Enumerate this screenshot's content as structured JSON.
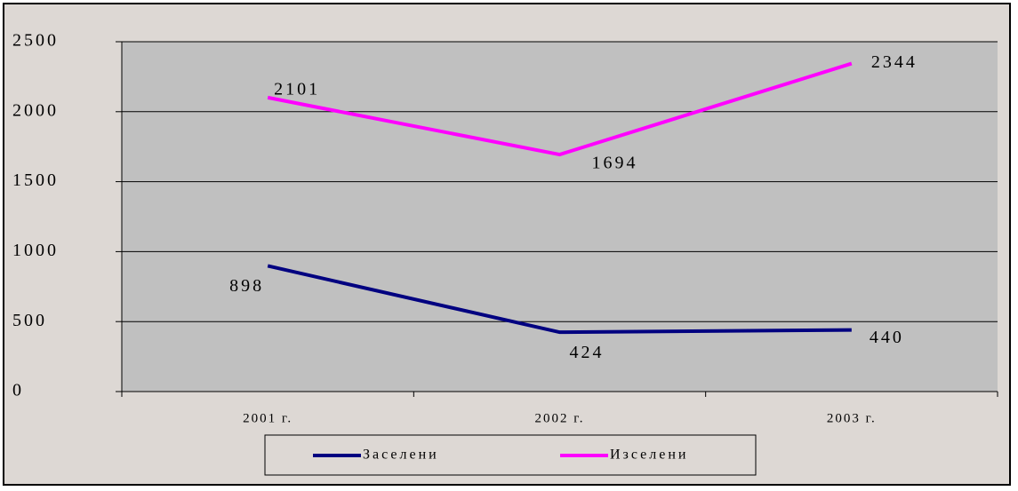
{
  "chart_data": {
    "type": "line",
    "categories": [
      "2001 г.",
      "2002 г.",
      "2003 г."
    ],
    "series": [
      {
        "name": "Заселени",
        "color": "#000080",
        "values": [
          898,
          424,
          440
        ]
      },
      {
        "name": "Изселени",
        "color": "#ff00ff",
        "values": [
          2101,
          1694,
          2344
        ]
      }
    ],
    "ylim": [
      0,
      2500
    ],
    "yticks": [
      0,
      500,
      1000,
      1500,
      2000,
      2500
    ],
    "grid": true,
    "legend": "bottom"
  }
}
